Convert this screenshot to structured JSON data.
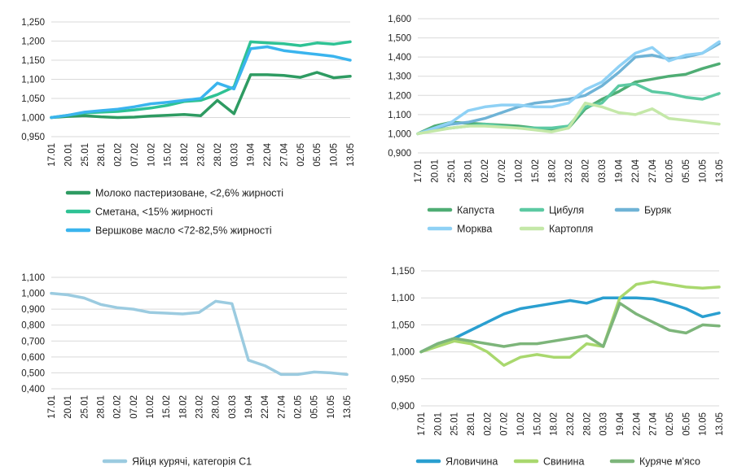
{
  "chart_data": [
    {
      "type": "line",
      "ylim": [
        0.95,
        1.25
      ],
      "yticks": [
        "0,950",
        "1,000",
        "1,050",
        "1,100",
        "1,150",
        "1,200",
        "1,250"
      ],
      "categories": [
        "17.01",
        "20.01",
        "25.01",
        "28.01",
        "02.02",
        "07.02",
        "10.02",
        "15.02",
        "18.02",
        "23.02",
        "28.02",
        "03.03",
        "19.04",
        "22.04",
        "27.04",
        "02.05",
        "05.05",
        "10.05",
        "13.05"
      ],
      "legend": "bottom",
      "grid": true,
      "series": [
        {
          "name": "Молоко пастеризоване, <2,6% жирності",
          "color": "#2e9b62",
          "values": [
            1.0,
            1.003,
            1.005,
            1.002,
            1.0,
            1.001,
            1.004,
            1.006,
            1.008,
            1.005,
            1.045,
            1.01,
            1.112,
            1.112,
            1.11,
            1.105,
            1.118,
            1.104,
            1.108
          ]
        },
        {
          "name": "Сметана, <15% жирності",
          "color": "#2ec294",
          "values": [
            1.0,
            1.006,
            1.012,
            1.014,
            1.016,
            1.02,
            1.025,
            1.032,
            1.042,
            1.045,
            1.06,
            1.08,
            1.198,
            1.195,
            1.193,
            1.188,
            1.195,
            1.192,
            1.198
          ]
        },
        {
          "name": "Вершкове масло <72-82,5% жирності",
          "color": "#3ab4ee",
          "values": [
            1.0,
            1.006,
            1.014,
            1.018,
            1.022,
            1.028,
            1.036,
            1.04,
            1.045,
            1.05,
            1.09,
            1.075,
            1.18,
            1.185,
            1.175,
            1.17,
            1.165,
            1.16,
            1.15
          ]
        }
      ]
    },
    {
      "type": "line",
      "ylim": [
        0.9,
        1.6
      ],
      "yticks": [
        "0,900",
        "1,000",
        "1,100",
        "1,200",
        "1,300",
        "1,400",
        "1,500",
        "1,600"
      ],
      "categories": [
        "17.01",
        "20.01",
        "25.01",
        "28.01",
        "02.02",
        "07.02",
        "10.02",
        "15.02",
        "18.02",
        "23.02",
        "28.02",
        "03.03",
        "19.04",
        "22.04",
        "27.04",
        "02.05",
        "05.05",
        "10.05",
        "13.05"
      ],
      "legend": "bottom",
      "grid": true,
      "series": [
        {
          "name": "Капуста",
          "color": "#4fad74",
          "values": [
            1.0,
            1.04,
            1.06,
            1.055,
            1.05,
            1.045,
            1.04,
            1.03,
            1.02,
            1.03,
            1.13,
            1.18,
            1.22,
            1.27,
            1.285,
            1.3,
            1.31,
            1.34,
            1.365
          ]
        },
        {
          "name": "Цибуля",
          "color": "#5cc9a2",
          "values": [
            1.0,
            1.02,
            1.03,
            1.04,
            1.05,
            1.04,
            1.03,
            1.03,
            1.03,
            1.04,
            1.14,
            1.16,
            1.25,
            1.26,
            1.22,
            1.21,
            1.19,
            1.18,
            1.21
          ]
        },
        {
          "name": "Буряк",
          "color": "#6fb3d6",
          "values": [
            1.0,
            1.03,
            1.05,
            1.06,
            1.08,
            1.11,
            1.14,
            1.16,
            1.17,
            1.18,
            1.2,
            1.25,
            1.32,
            1.4,
            1.41,
            1.39,
            1.4,
            1.42,
            1.47
          ]
        },
        {
          "name": "Морква",
          "color": "#8fd1f5",
          "values": [
            1.0,
            1.03,
            1.06,
            1.12,
            1.14,
            1.15,
            1.15,
            1.14,
            1.14,
            1.16,
            1.23,
            1.27,
            1.35,
            1.42,
            1.45,
            1.38,
            1.41,
            1.42,
            1.48
          ]
        },
        {
          "name": "Картопля",
          "color": "#c4e8a8",
          "values": [
            1.0,
            1.015,
            1.03,
            1.04,
            1.04,
            1.035,
            1.03,
            1.02,
            1.01,
            1.03,
            1.16,
            1.14,
            1.11,
            1.1,
            1.13,
            1.08,
            1.07,
            1.06,
            1.05
          ]
        }
      ]
    },
    {
      "type": "line",
      "ylim": [
        0.4,
        1.1
      ],
      "yticks": [
        "0,400",
        "0,500",
        "0,600",
        "0,700",
        "0,800",
        "0,900",
        "1,000",
        "1,100"
      ],
      "categories": [
        "17.01",
        "20.01",
        "25.01",
        "28.01",
        "02.02",
        "07.02",
        "10.02",
        "15.02",
        "18.02",
        "23.02",
        "28.02",
        "03.03",
        "19.04",
        "22.04",
        "27.04",
        "02.05",
        "05.05",
        "10.05",
        "13.05"
      ],
      "legend": "bottom",
      "grid": true,
      "series": [
        {
          "name": "Яйця курячі, категорія С1",
          "color": "#9bcbe0",
          "values": [
            1.0,
            0.99,
            0.97,
            0.93,
            0.91,
            0.9,
            0.88,
            0.875,
            0.87,
            0.88,
            0.95,
            0.935,
            0.58,
            0.545,
            0.49,
            0.49,
            0.505,
            0.5,
            0.49
          ]
        }
      ]
    },
    {
      "type": "line",
      "ylim": [
        0.9,
        1.15
      ],
      "yticks": [
        "0,900",
        "0,950",
        "1,000",
        "1,050",
        "1,100",
        "1,150"
      ],
      "categories": [
        "17.01",
        "20.01",
        "25.01",
        "28.01",
        "02.02",
        "07.02",
        "10.02",
        "15.02",
        "18.02",
        "23.02",
        "28.02",
        "03.03",
        "19.04",
        "22.04",
        "27.04",
        "02.05",
        "05.05",
        "10.05",
        "13.05"
      ],
      "legend": "bottom",
      "grid": true,
      "series": [
        {
          "name": "Яловичина",
          "color": "#2a9fd0",
          "values": [
            1.0,
            1.015,
            1.025,
            1.04,
            1.055,
            1.07,
            1.08,
            1.085,
            1.09,
            1.095,
            1.09,
            1.1,
            1.1,
            1.1,
            1.098,
            1.09,
            1.08,
            1.065,
            1.072
          ]
        },
        {
          "name": "Свинина",
          "color": "#a9d86e",
          "values": [
            1.0,
            1.01,
            1.02,
            1.015,
            1.0,
            0.975,
            0.99,
            0.995,
            0.99,
            0.99,
            1.015,
            1.01,
            1.1,
            1.125,
            1.13,
            1.125,
            1.12,
            1.118,
            1.12
          ]
        },
        {
          "name": "Куряче м'ясо",
          "color": "#7db57a",
          "values": [
            1.0,
            1.015,
            1.025,
            1.02,
            1.015,
            1.01,
            1.015,
            1.015,
            1.02,
            1.025,
            1.03,
            1.01,
            1.09,
            1.07,
            1.055,
            1.04,
            1.035,
            1.05,
            1.048
          ]
        }
      ]
    }
  ]
}
